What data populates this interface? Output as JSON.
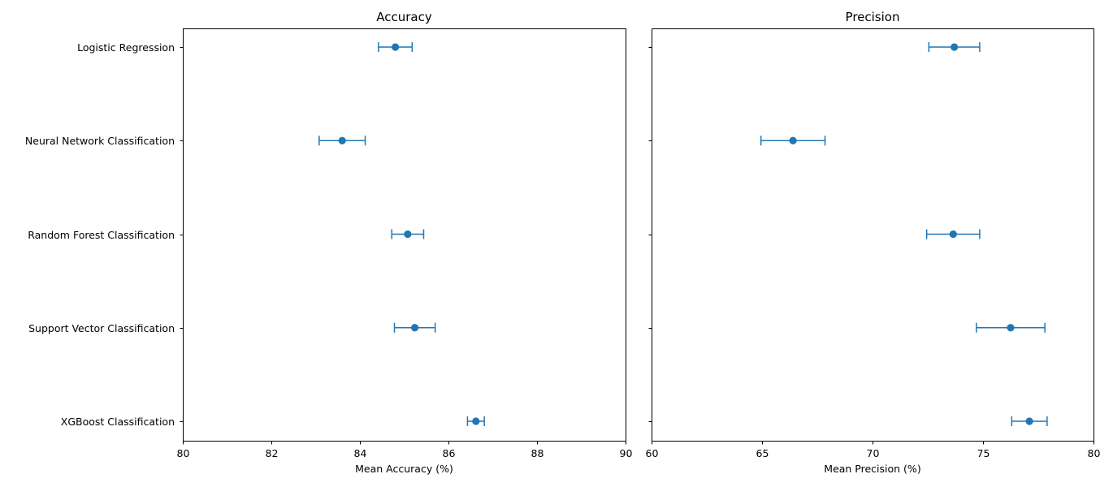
{
  "chart_data": [
    {
      "type": "scatter",
      "title": "Accuracy",
      "xlabel": "Mean Accuracy (%)",
      "ylabel": "",
      "xlim": [
        80,
        90
      ],
      "xticks": [
        80,
        82,
        84,
        86,
        88,
        90
      ],
      "categories": [
        "Logistic Regression",
        "Neural Network Classification",
        "Random Forest Classification",
        "Support Vector Classification",
        "XGBoost Classification"
      ],
      "values": [
        84.8,
        83.6,
        85.08,
        85.24,
        86.62
      ],
      "error": [
        0.38,
        0.52,
        0.36,
        0.46,
        0.19
      ],
      "color": "#1f77b4",
      "grid": false
    },
    {
      "type": "scatter",
      "title": "Precision",
      "xlabel": "Mean Precision (%)",
      "ylabel": "",
      "xlim": [
        60,
        80
      ],
      "xticks": [
        60,
        65,
        70,
        75,
        80
      ],
      "categories": [
        "Logistic Regression",
        "Neural Network Classification",
        "Random Forest Classification",
        "Support Vector Classification",
        "XGBoost Classification"
      ],
      "values": [
        73.7,
        66.4,
        73.65,
        76.25,
        77.1
      ],
      "error": [
        1.15,
        1.45,
        1.2,
        1.55,
        0.8
      ],
      "color": "#1f77b4",
      "grid": false
    }
  ]
}
